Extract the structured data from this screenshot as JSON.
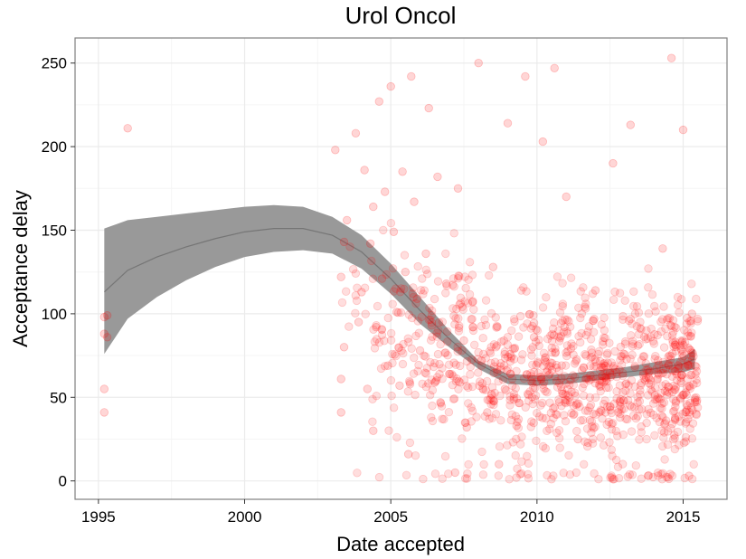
{
  "chart_data": {
    "type": "scatter",
    "title": "Urol Oncol",
    "xlabel": "Date accepted",
    "ylabel": "Acceptance delay",
    "xlim": [
      1994.2,
      2016.5
    ],
    "ylim": [
      -11,
      265
    ],
    "x_ticks": [
      1995,
      2000,
      2005,
      2010,
      2015
    ],
    "y_ticks": [
      0,
      50,
      100,
      150,
      200,
      250
    ],
    "grid": true,
    "legend": "none",
    "colors": {
      "points": "#ff0000",
      "band": "#999999",
      "smooth": "#333333",
      "panel_border": "#7f7f7f",
      "grid_major": "#ebebeb",
      "grid_minor": "#f5f5f5"
    },
    "smooth": {
      "x": [
        1995.2,
        1996,
        1997,
        1998,
        1999,
        2000,
        2001,
        2002,
        2003,
        2004,
        2005,
        2006,
        2007,
        2008,
        2009,
        2010,
        2011,
        2012,
        2013,
        2014,
        2015,
        2015.4
      ],
      "lower": [
        76,
        97,
        110,
        120,
        128,
        134,
        137,
        138,
        136,
        127,
        112,
        94,
        80,
        67,
        58,
        57,
        58,
        60,
        62,
        64,
        65,
        67
      ],
      "upper": [
        151,
        156,
        158,
        160,
        162,
        164,
        165,
        164,
        158,
        147,
        130,
        110,
        90,
        72,
        64,
        63,
        64,
        66,
        68,
        71,
        74,
        79
      ],
      "fit": [
        113,
        126,
        134,
        140,
        145,
        149,
        151,
        151,
        147,
        137,
        121,
        102,
        85,
        70,
        61,
        60,
        61,
        63,
        65,
        67,
        70,
        73
      ]
    },
    "points": [
      {
        "x": 1995.2,
        "y": 98
      },
      {
        "x": 1995.3,
        "y": 99
      },
      {
        "x": 1995.2,
        "y": 88
      },
      {
        "x": 1995.3,
        "y": 86
      },
      {
        "x": 1995.2,
        "y": 55
      },
      {
        "x": 1995.2,
        "y": 41
      },
      {
        "x": 1996.0,
        "y": 211
      },
      {
        "x": 2003.1,
        "y": 198
      },
      {
        "x": 2003.3,
        "y": 122
      },
      {
        "x": 2003.4,
        "y": 143
      },
      {
        "x": 2003.5,
        "y": 156
      },
      {
        "x": 2003.4,
        "y": 80
      },
      {
        "x": 2003.3,
        "y": 61
      },
      {
        "x": 2003.3,
        "y": 41
      },
      {
        "x": 2003.8,
        "y": 208
      },
      {
        "x": 2003.9,
        "y": 95
      },
      {
        "x": 2004.0,
        "y": 113
      },
      {
        "x": 2004.1,
        "y": 186
      },
      {
        "x": 2004.2,
        "y": 55
      },
      {
        "x": 2004.3,
        "y": 142
      },
      {
        "x": 2004.4,
        "y": 164
      },
      {
        "x": 2004.4,
        "y": 30
      },
      {
        "x": 2004.5,
        "y": 92
      },
      {
        "x": 2004.6,
        "y": 227
      },
      {
        "x": 2004.7,
        "y": 121
      },
      {
        "x": 2004.8,
        "y": 173
      },
      {
        "x": 2004.9,
        "y": 69
      },
      {
        "x": 2005.0,
        "y": 236
      },
      {
        "x": 2005.1,
        "y": 149
      },
      {
        "x": 2005.2,
        "y": 101
      },
      {
        "x": 2005.3,
        "y": 57
      },
      {
        "x": 2005.4,
        "y": 185
      },
      {
        "x": 2005.5,
        "y": 125
      },
      {
        "x": 2005.6,
        "y": 16
      },
      {
        "x": 2005.7,
        "y": 242
      },
      {
        "x": 2005.8,
        "y": 167
      },
      {
        "x": 2005.9,
        "y": 109
      },
      {
        "x": 2006.0,
        "y": 78
      },
      {
        "x": 2006.2,
        "y": 136
      },
      {
        "x": 2006.3,
        "y": 223
      },
      {
        "x": 2006.4,
        "y": 93
      },
      {
        "x": 2006.6,
        "y": 182
      },
      {
        "x": 2006.7,
        "y": 47
      },
      {
        "x": 2006.9,
        "y": 118
      },
      {
        "x": 2007.0,
        "y": 64
      },
      {
        "x": 2007.2,
        "y": 5
      },
      {
        "x": 2007.3,
        "y": 175
      },
      {
        "x": 2007.5,
        "y": 84
      },
      {
        "x": 2007.6,
        "y": 32
      },
      {
        "x": 2007.8,
        "y": 107
      },
      {
        "x": 2008.0,
        "y": 250
      },
      {
        "x": 2008.1,
        "y": 72
      },
      {
        "x": 2008.3,
        "y": 41
      },
      {
        "x": 2008.5,
        "y": 128
      },
      {
        "x": 2008.7,
        "y": 10
      },
      {
        "x": 2008.9,
        "y": 55
      },
      {
        "x": 2009.0,
        "y": 214
      },
      {
        "x": 2009.3,
        "y": 33
      },
      {
        "x": 2009.6,
        "y": 242
      },
      {
        "x": 2009.9,
        "y": 86
      },
      {
        "x": 2010.2,
        "y": 203
      },
      {
        "x": 2010.6,
        "y": 247
      },
      {
        "x": 2011.0,
        "y": 170
      },
      {
        "x": 2011.4,
        "y": 25
      },
      {
        "x": 2012.0,
        "y": 114
      },
      {
        "x": 2012.6,
        "y": 190
      },
      {
        "x": 2013.2,
        "y": 213
      },
      {
        "x": 2013.8,
        "y": 3
      },
      {
        "x": 2014.3,
        "y": 139
      },
      {
        "x": 2014.6,
        "y": 253
      },
      {
        "x": 2015.0,
        "y": 210
      },
      {
        "x": 2015.2,
        "y": 3
      },
      {
        "x": 2015.3,
        "y": 100
      },
      {
        "x": 2015.4,
        "y": 47
      }
    ],
    "cloud": {
      "seed": 7,
      "count": 1080,
      "x_range": [
        2003.2,
        2015.5
      ],
      "y_max": 250,
      "opacity": 0.13
    }
  }
}
